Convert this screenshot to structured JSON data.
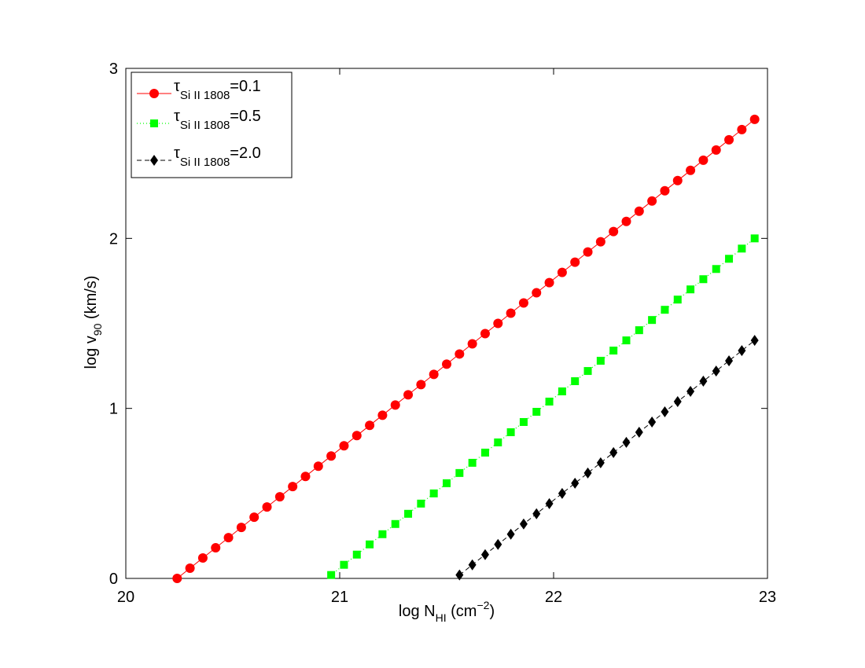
{
  "chart_data": {
    "type": "line",
    "title": "",
    "xlim": [
      20,
      23
    ],
    "ylim": [
      0,
      3
    ],
    "x_ticks": [
      20,
      21,
      22,
      23
    ],
    "y_ticks": [
      0,
      1,
      2,
      3
    ],
    "x_tick_labels": [
      "20",
      "21",
      "22",
      "23"
    ],
    "y_tick_labels": [
      "0",
      "1",
      "2",
      "3"
    ],
    "xlabel": {
      "prefix": "log N",
      "sub": "HI",
      "unit_open": " (cm",
      "sup": "−2",
      "unit_close": ")"
    },
    "ylabel": {
      "prefix": "log v",
      "sub": "90",
      "unit": " (km/s)"
    },
    "grid": false,
    "legend_position": "top-left",
    "series": [
      {
        "symbol": "τ",
        "sub": "Si II 1808",
        "value_text": "=0.1",
        "color": "#ff0000",
        "marker": "circle",
        "line": "solid",
        "x": [
          20.24,
          20.3,
          20.36,
          20.42,
          20.48,
          20.54,
          20.6,
          20.66,
          20.72,
          20.78,
          20.84,
          20.9,
          20.96,
          21.02,
          21.08,
          21.14,
          21.2,
          21.26,
          21.32,
          21.38,
          21.44,
          21.5,
          21.56,
          21.62,
          21.68,
          21.74,
          21.8,
          21.86,
          21.92,
          21.98,
          22.04,
          22.1,
          22.16,
          22.22,
          22.28,
          22.34,
          22.4,
          22.46,
          22.52,
          22.58,
          22.64,
          22.7,
          22.76,
          22.82,
          22.88,
          22.94
        ],
        "y": [
          0.0,
          0.06,
          0.12,
          0.18,
          0.24,
          0.3,
          0.36,
          0.42,
          0.48,
          0.54,
          0.6,
          0.66,
          0.72,
          0.78,
          0.84,
          0.9,
          0.96,
          1.02,
          1.08,
          1.14,
          1.2,
          1.26,
          1.32,
          1.38,
          1.44,
          1.5,
          1.56,
          1.62,
          1.68,
          1.74,
          1.8,
          1.86,
          1.92,
          1.98,
          2.04,
          2.1,
          2.16,
          2.22,
          2.28,
          2.34,
          2.4,
          2.46,
          2.52,
          2.58,
          2.64,
          2.7
        ]
      },
      {
        "symbol": "τ",
        "sub": "Si II 1808",
        "value_text": "=0.5",
        "color": "#00ff00",
        "marker": "square",
        "line": "dotted",
        "x": [
          20.96,
          21.02,
          21.08,
          21.14,
          21.2,
          21.26,
          21.32,
          21.38,
          21.44,
          21.5,
          21.56,
          21.62,
          21.68,
          21.74,
          21.8,
          21.86,
          21.92,
          21.98,
          22.04,
          22.1,
          22.16,
          22.22,
          22.28,
          22.34,
          22.4,
          22.46,
          22.52,
          22.58,
          22.64,
          22.7,
          22.76,
          22.82,
          22.88,
          22.94
        ],
        "y": [
          0.02,
          0.08,
          0.14,
          0.2,
          0.26,
          0.32,
          0.38,
          0.44,
          0.5,
          0.56,
          0.62,
          0.68,
          0.74,
          0.8,
          0.86,
          0.92,
          0.98,
          1.04,
          1.1,
          1.16,
          1.22,
          1.28,
          1.34,
          1.4,
          1.46,
          1.52,
          1.58,
          1.64,
          1.7,
          1.76,
          1.82,
          1.88,
          1.94,
          2.0
        ]
      },
      {
        "symbol": "τ",
        "sub": "Si II 1808",
        "value_text": "=2.0",
        "color": "#000000",
        "marker": "diamond",
        "line": "dashed",
        "x": [
          21.56,
          21.62,
          21.68,
          21.74,
          21.8,
          21.86,
          21.92,
          21.98,
          22.04,
          22.1,
          22.16,
          22.22,
          22.28,
          22.34,
          22.4,
          22.46,
          22.52,
          22.58,
          22.64,
          22.7,
          22.76,
          22.82,
          22.88,
          22.94
        ],
        "y": [
          0.02,
          0.08,
          0.14,
          0.2,
          0.26,
          0.32,
          0.38,
          0.44,
          0.5,
          0.56,
          0.62,
          0.68,
          0.74,
          0.8,
          0.86,
          0.92,
          0.98,
          1.04,
          1.1,
          1.16,
          1.22,
          1.28,
          1.34,
          1.4
        ]
      }
    ]
  }
}
